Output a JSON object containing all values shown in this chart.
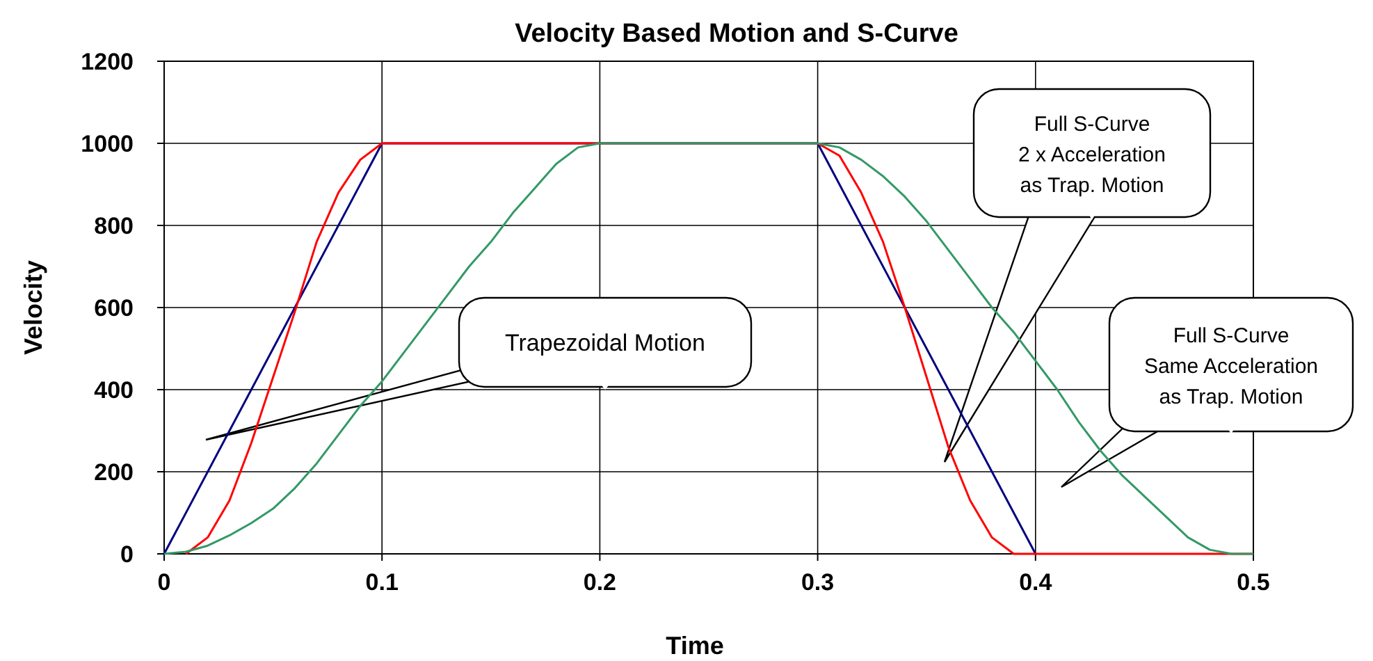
{
  "chart_data": {
    "type": "line",
    "title": "Velocity Based Motion and S-Curve",
    "xlabel": "Time",
    "ylabel": "Velocity",
    "xlim": [
      0,
      0.5
    ],
    "xticks": [
      0,
      0.1,
      0.2,
      0.3,
      0.4,
      0.5
    ],
    "ylim": [
      0,
      1200
    ],
    "yticks": [
      0,
      200,
      400,
      600,
      800,
      1000,
      1200
    ],
    "grid": true,
    "marker": "none",
    "line_style": "solid",
    "series": [
      {
        "color": "#000080",
        "x": [
          0,
          0.1,
          0.3,
          0.4
        ],
        "values": [
          0,
          1000,
          1000,
          0
        ]
      },
      {
        "color": "#ff0000",
        "x": [
          0.01,
          0.02,
          0.03,
          0.04,
          0.05,
          0.06,
          0.07,
          0.08,
          0.09,
          0.1,
          0.3,
          0.31,
          0.32,
          0.33,
          0.34,
          0.35,
          0.36,
          0.37,
          0.38,
          0.39,
          0.5
        ],
        "values": [
          0,
          40,
          130,
          270,
          430,
          590,
          760,
          880,
          960,
          1000,
          1000,
          970,
          880,
          760,
          600,
          430,
          260,
          130,
          40,
          0,
          0
        ]
      },
      {
        "color": "#339966",
        "x": [
          0,
          0.01,
          0.02,
          0.03,
          0.04,
          0.05,
          0.06,
          0.07,
          0.08,
          0.09,
          0.1,
          0.11,
          0.12,
          0.13,
          0.14,
          0.15,
          0.16,
          0.17,
          0.18,
          0.19,
          0.2,
          0.3,
          0.31,
          0.32,
          0.33,
          0.34,
          0.35,
          0.36,
          0.37,
          0.38,
          0.39,
          0.4,
          0.41,
          0.42,
          0.43,
          0.44,
          0.45,
          0.46,
          0.47,
          0.48,
          0.49,
          0.5
        ],
        "values": [
          0,
          5,
          20,
          45,
          75,
          110,
          160,
          220,
          290,
          360,
          420,
          490,
          560,
          630,
          700,
          760,
          830,
          890,
          950,
          990,
          1000,
          1000,
          990,
          960,
          920,
          870,
          810,
          740,
          670,
          600,
          540,
          470,
          400,
          320,
          250,
          190,
          140,
          90,
          40,
          10,
          0,
          0
        ]
      }
    ],
    "annotations": [
      "Trapezoidal Motion",
      "Full S-Curve\n2 x Acceleration\nas Trap. Motion",
      "Full S-Curve\nSame Acceleration\nas Trap. Motion"
    ]
  }
}
